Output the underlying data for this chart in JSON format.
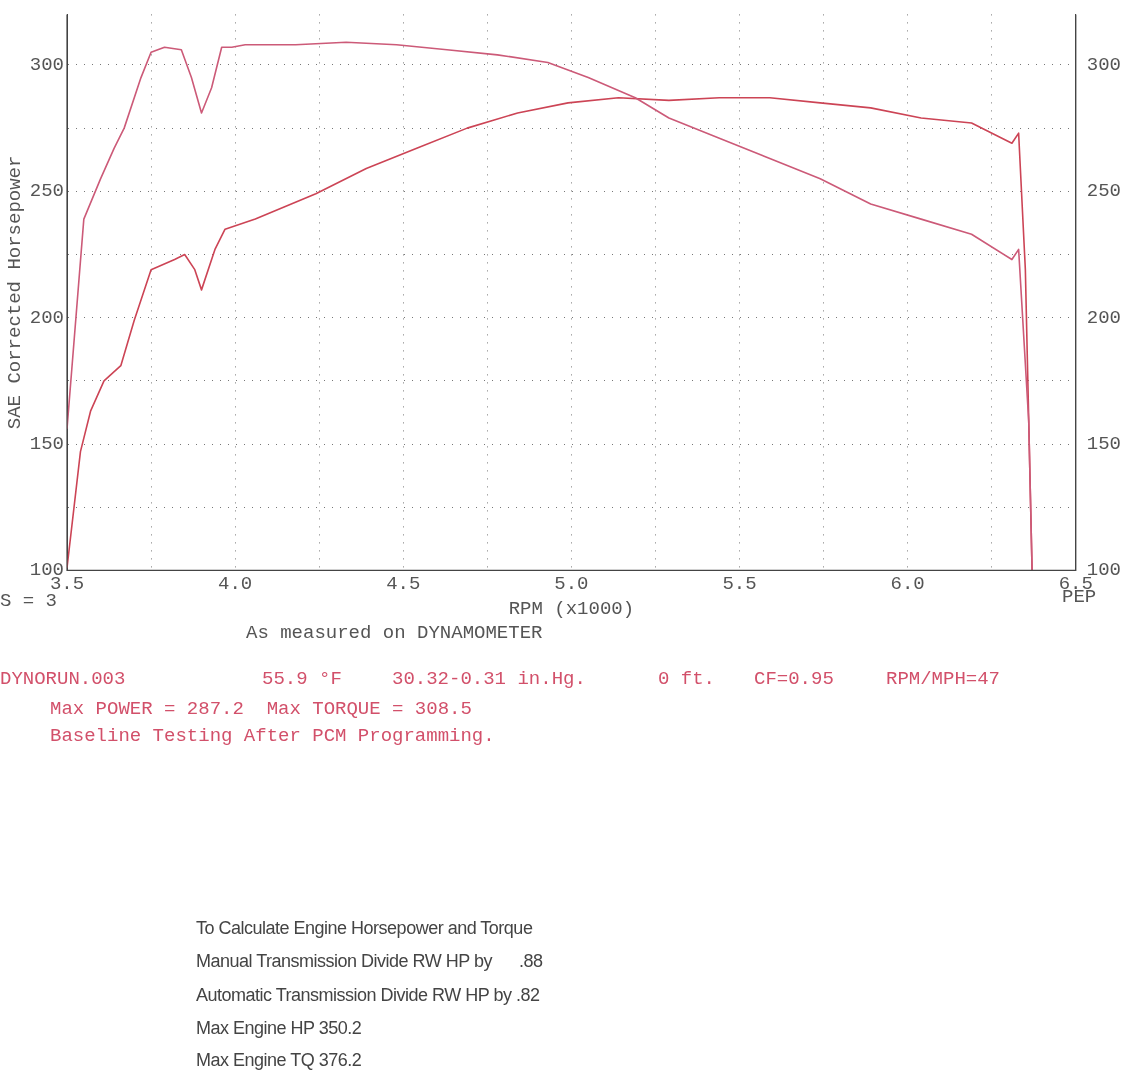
{
  "chart_data": {
    "type": "line",
    "xlabel": "RPM (x1000)",
    "ylabel": "SAE Corrected Horsepower",
    "xlim": [
      3.5,
      6.5
    ],
    "xticks": [
      3.5,
      {
        "value": 3.75,
        "label": null
      },
      {
        "value": 4,
        "label": "4.0"
      },
      {
        "value": 4.25,
        "label": null
      },
      4.5,
      {
        "value": 4.75,
        "label": null
      },
      {
        "value": 5,
        "label": "5.0"
      },
      {
        "value": 5.25,
        "label": null
      },
      5.5,
      {
        "value": 5.75,
        "label": null
      },
      {
        "value": 6,
        "label": "6.0"
      },
      {
        "value": 6.25,
        "label": null
      },
      6.5
    ],
    "ylim": [
      100,
      320
    ],
    "yticks": [
      100,
      {
        "value": 125,
        "label": null
      },
      150,
      {
        "value": 175,
        "label": null
      },
      200,
      {
        "value": 225,
        "label": null
      },
      250,
      {
        "value": 275,
        "label": null
      },
      300
    ],
    "y2lim": [
      100,
      320
    ],
    "y2ticks": [
      100,
      150,
      200,
      250,
      300
    ],
    "grid": true,
    "legend": false,
    "marker": "none",
    "line_style": "solid",
    "series": [
      {
        "color": "#cc5a78",
        "x": [
          3.5,
          3.55,
          3.6,
          3.64,
          3.67,
          3.72,
          3.75,
          3.79,
          3.84,
          3.87,
          3.9,
          3.93,
          3.96,
          3.99,
          4.03,
          4.18,
          4.33,
          4.48,
          4.63,
          4.78,
          4.93,
          5.05,
          5.19,
          5.29,
          5.44,
          5.59,
          5.74,
          5.89,
          6.04,
          6.19,
          6.31,
          6.33,
          6.36,
          6.37
        ],
        "values": [
          156,
          239,
          255,
          267,
          275,
          295,
          305,
          307,
          306,
          295,
          281,
          291,
          307,
          307,
          308,
          308,
          309,
          308,
          306,
          304,
          301,
          295,
          287,
          279,
          271,
          263,
          255,
          245,
          239,
          233,
          223,
          227,
          159,
          100
        ]
      },
      {
        "color": "#cc4455",
        "x": [
          3.5,
          3.54,
          3.57,
          3.61,
          3.66,
          3.7,
          3.75,
          3.82,
          3.85,
          3.88,
          3.9,
          3.94,
          3.97,
          4.06,
          4.24,
          4.39,
          4.54,
          4.69,
          4.84,
          4.99,
          5.14,
          5.29,
          5.44,
          5.59,
          5.74,
          5.89,
          6.04,
          6.19,
          6.31,
          6.33,
          6.35,
          6.37
        ],
        "values": [
          101,
          147,
          163,
          175,
          181,
          199,
          219,
          223,
          225,
          219,
          211,
          227,
          235,
          239,
          249,
          259,
          267,
          275,
          281,
          285,
          287,
          286,
          287,
          287,
          285,
          283,
          279,
          277,
          269,
          273,
          219,
          100
        ]
      }
    ],
    "annotations": [
      "S = 3",
      "PEP",
      "As measured on DYNAMOMETER",
      "DYNORUN.003",
      "55.9 °F",
      "30.32-0.31 in.Hg.",
      "0 ft.",
      "CF=0.95",
      "RPM/MPH=47",
      "Max POWER = 287.2  Max TORQUE = 308.5",
      "Baseline Testing After PCM Programming.",
      "To Calculate Engine Horsepower and Torque",
      "Manual Transmission Divide RW HP by      .88",
      "Automatic Transmission Divide RW HP by .82",
      "Max Engine HP 350.2",
      "Max Engine TQ 376.2"
    ]
  }
}
